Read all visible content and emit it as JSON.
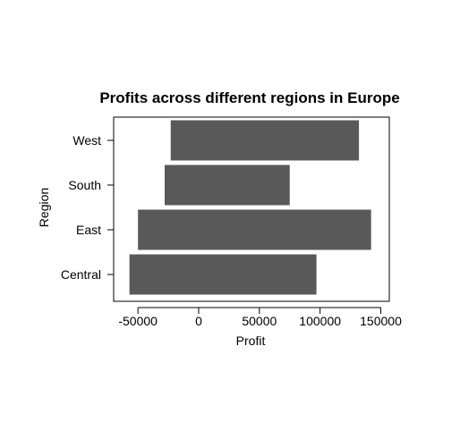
{
  "chart_data": {
    "type": "bar",
    "orientation": "horizontal",
    "title": "Profits across different regions in Europe",
    "xlabel": "Profit",
    "ylabel": "Region",
    "xlim": [
      -70000,
      157000
    ],
    "xticks": [
      -50000,
      0,
      50000,
      100000,
      150000
    ],
    "xtick_labels": [
      "-50000",
      "0",
      "50000",
      "100000",
      "150000"
    ],
    "categories": [
      "Central",
      "East",
      "South",
      "West"
    ],
    "values": [
      {
        "start": -57000,
        "end": 97000
      },
      {
        "start": -50000,
        "end": 142000
      },
      {
        "start": -28000,
        "end": 75000
      },
      {
        "start": -23000,
        "end": 132000
      }
    ],
    "bar_color": "#595959",
    "grid": false,
    "legend": "none"
  }
}
